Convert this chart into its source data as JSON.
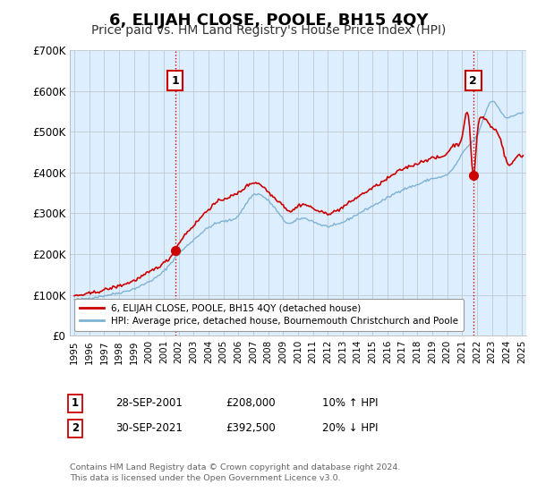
{
  "title": "6, ELIJAH CLOSE, POOLE, BH15 4QY",
  "subtitle": "Price paid vs. HM Land Registry's House Price Index (HPI)",
  "ylim": [
    0,
    700000
  ],
  "yticks": [
    0,
    100000,
    200000,
    300000,
    400000,
    500000,
    600000,
    700000
  ],
  "ytick_labels": [
    "£0",
    "£100K",
    "£200K",
    "£300K",
    "£400K",
    "£500K",
    "£600K",
    "£700K"
  ],
  "sale1_date": "28-SEP-2001",
  "sale1_price": 208000,
  "sale1_hpi_diff": "10% ↑ HPI",
  "sale1_year": 2001.75,
  "sale2_date": "30-SEP-2021",
  "sale2_price": 392500,
  "sale2_hpi_diff": "20% ↓ HPI",
  "sale2_year": 2021.75,
  "legend_line1": "6, ELIJAH CLOSE, POOLE, BH15 4QY (detached house)",
  "legend_line2": "HPI: Average price, detached house, Bournemouth Christchurch and Poole",
  "footnote": "Contains HM Land Registry data © Crown copyright and database right 2024.\nThis data is licensed under the Open Government Licence v3.0.",
  "line_color_red": "#cc0000",
  "line_color_blue": "#7fb3d3",
  "plot_bg_color": "#ddeeff",
  "background_color": "#ffffff",
  "title_fontsize": 13,
  "subtitle_fontsize": 10,
  "xlim_left": 1994.7,
  "xlim_right": 2025.3
}
